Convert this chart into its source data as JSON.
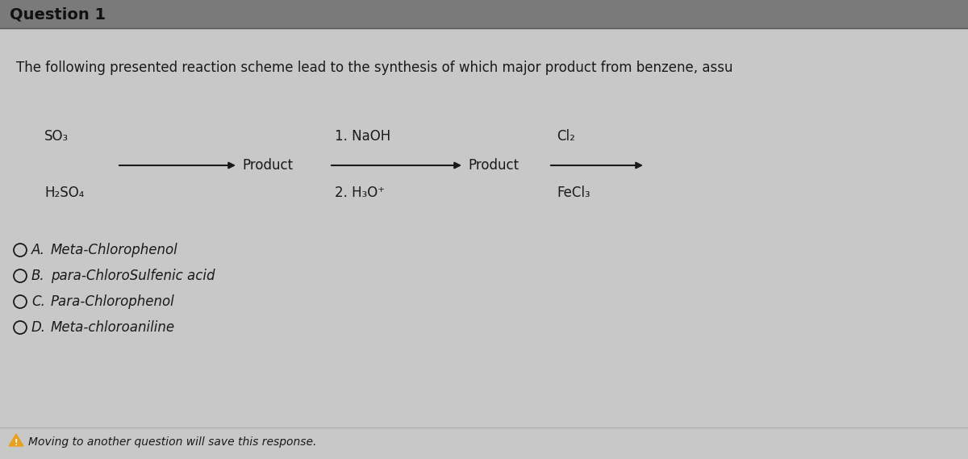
{
  "bg_color": "#c8c8c8",
  "header_bg": "#8a8a8a",
  "title_header": "Question 1",
  "question_text": "The following presented reaction scheme lead to the synthesis of which major product from benzene, assu",
  "reaction": {
    "step1_above": "SO₃",
    "step1_below": "H₂SO₄",
    "step1_product": "Product",
    "step2_above": "1. NaOH",
    "step2_below": "2. H₃O⁺",
    "step2_product": "Product",
    "step3_above": "Cl₂",
    "step3_below": "FeCl₃"
  },
  "options": [
    {
      "letter": "A.",
      "text": "Meta-Chlorophenol"
    },
    {
      "letter": "B.",
      "text": "para-ChloroSulfenic acid"
    },
    {
      "letter": "C.",
      "text": "Para-Chlorophenol"
    },
    {
      "letter": "D.",
      "text": "Meta-chloroaniline"
    }
  ],
  "footer_text": "Moving to another question will save this response.",
  "font_color": "#1a1a1a",
  "arrow_color": "#1a1a1a",
  "circle_color": "#1a1a1a",
  "warning_color": "#e8a020"
}
